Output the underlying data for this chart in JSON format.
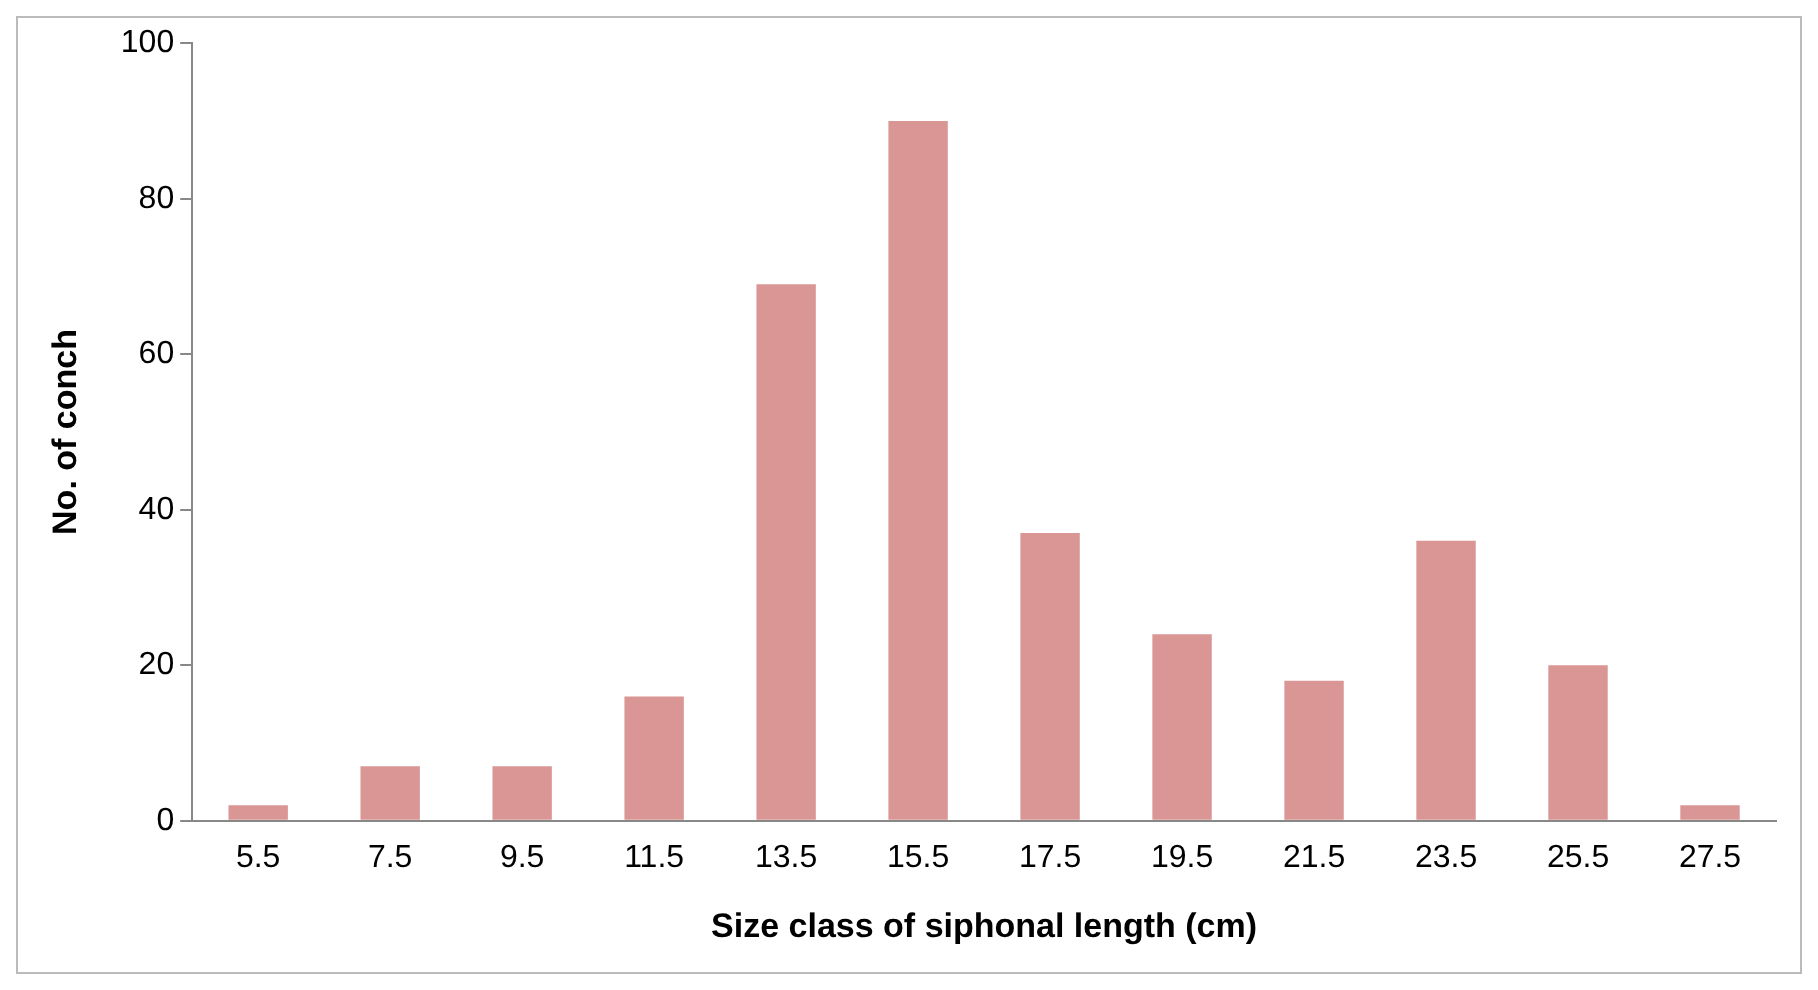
{
  "chart_data": {
    "type": "bar",
    "xlabel": "Size class of siphonal length (cm)",
    "ylabel": "No. of conch",
    "categories": [
      "5.5",
      "7.5",
      "9.5",
      "11.5",
      "13.5",
      "15.5",
      "17.5",
      "19.5",
      "21.5",
      "23.5",
      "25.5",
      "27.5"
    ],
    "values": [
      2,
      7,
      7,
      16,
      69,
      90,
      37,
      24,
      18,
      36,
      20,
      2
    ],
    "color": "#d99694",
    "ylim": [
      0,
      100
    ],
    "yticks": [
      0,
      20,
      40,
      60,
      80,
      100
    ],
    "grid": false,
    "legend": false
  }
}
